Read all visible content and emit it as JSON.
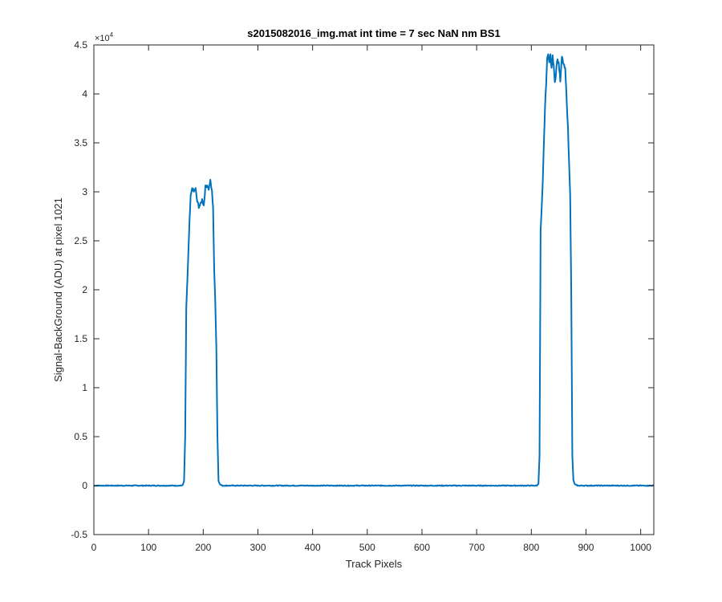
{
  "chart_data": {
    "type": "line",
    "title": "s2015082016_img.mat int time = 7 sec  NaN nm BS1",
    "xlabel": "Track Pixels",
    "ylabel": "Signal-BackGround (ADU) at pixel 1021",
    "xlim": [
      0,
      1024
    ],
    "ylim": [
      -5000,
      45000
    ],
    "x_ticks": [
      0,
      100,
      200,
      300,
      400,
      500,
      600,
      700,
      800,
      900,
      1000
    ],
    "y_ticks": [
      -5000,
      0,
      5000,
      10000,
      15000,
      20000,
      25000,
      30000,
      35000,
      40000,
      45000
    ],
    "y_tick_labels": [
      "-0.5",
      "0",
      "0.5",
      "1",
      "1.5",
      "2",
      "2.5",
      "3",
      "3.5",
      "4",
      "4.5"
    ],
    "y_exponent_base": "×10",
    "y_exponent_power": "4",
    "grid": false,
    "series": [
      {
        "color": "#0072BD",
        "points": [
          [
            0,
            0
          ],
          [
            160,
            0
          ],
          [
            163,
            100
          ],
          [
            165,
            500
          ],
          [
            167,
            5000
          ],
          [
            169,
            18000
          ],
          [
            171,
            21000
          ],
          [
            173,
            24000
          ],
          [
            175,
            27000
          ],
          [
            177,
            29500
          ],
          [
            180,
            30400
          ],
          [
            183,
            30000
          ],
          [
            186,
            30300
          ],
          [
            189,
            29000
          ],
          [
            192,
            28500
          ],
          [
            195,
            28700
          ],
          [
            198,
            29200
          ],
          [
            201,
            28600
          ],
          [
            204,
            30500
          ],
          [
            207,
            30700
          ],
          [
            210,
            30300
          ],
          [
            213,
            31100
          ],
          [
            216,
            30000
          ],
          [
            218,
            28500
          ],
          [
            220,
            22000
          ],
          [
            222,
            19000
          ],
          [
            224,
            14000
          ],
          [
            226,
            5000
          ],
          [
            228,
            500
          ],
          [
            231,
            100
          ],
          [
            235,
            0
          ],
          [
            810,
            0
          ],
          [
            813,
            200
          ],
          [
            815,
            3000
          ],
          [
            817,
            26000
          ],
          [
            819,
            28300
          ],
          [
            821,
            31000
          ],
          [
            823,
            35000
          ],
          [
            825,
            38500
          ],
          [
            827,
            41000
          ],
          [
            829,
            43500
          ],
          [
            831,
            44200
          ],
          [
            833,
            43200
          ],
          [
            835,
            44000
          ],
          [
            837,
            42500
          ],
          [
            839,
            43800
          ],
          [
            841,
            43000
          ],
          [
            843,
            41200
          ],
          [
            845,
            42000
          ],
          [
            847,
            43500
          ],
          [
            850,
            43200
          ],
          [
            853,
            41300
          ],
          [
            856,
            43800
          ],
          [
            859,
            43000
          ],
          [
            862,
            42500
          ],
          [
            865,
            39000
          ],
          [
            867,
            36500
          ],
          [
            869,
            33000
          ],
          [
            871,
            30000
          ],
          [
            873,
            20000
          ],
          [
            875,
            3000
          ],
          [
            877,
            500
          ],
          [
            880,
            100
          ],
          [
            885,
            0
          ],
          [
            1024,
            0
          ]
        ]
      }
    ]
  }
}
